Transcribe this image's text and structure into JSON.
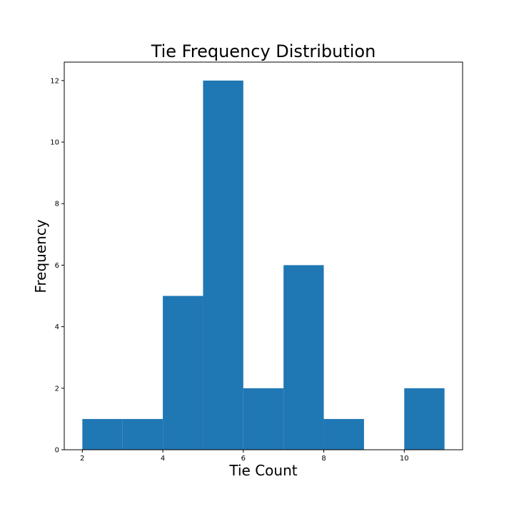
{
  "chart_data": {
    "type": "bar",
    "subtype": "histogram",
    "title": "Tie Frequency Distribution",
    "xlabel": "Tie Count",
    "ylabel": "Frequency",
    "xlim": [
      1.55,
      11.45
    ],
    "ylim": [
      0,
      12.6
    ],
    "xticks": [
      2,
      4,
      6,
      8,
      10
    ],
    "yticks": [
      0,
      2,
      4,
      6,
      8,
      10,
      12
    ],
    "bin_edges": [
      2.0,
      3.0,
      4.0,
      5.0,
      6.0,
      7.0,
      8.0,
      9.0,
      10.0,
      11.0
    ],
    "values": [
      1,
      1,
      5,
      12,
      2,
      6,
      1,
      0,
      2
    ],
    "color": "#1f77b4",
    "grid": false,
    "legend": "none"
  }
}
